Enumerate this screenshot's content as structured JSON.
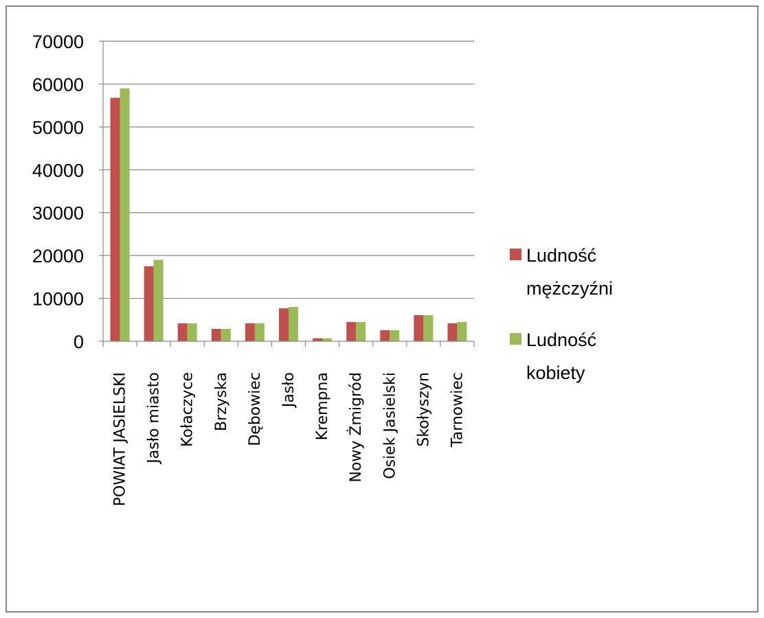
{
  "chart_data": {
    "type": "bar",
    "title": "",
    "xlabel": "",
    "ylabel": "",
    "categories": [
      "POWIAT JASIELSKI",
      "Jasło miasto",
      "Kołaczyce",
      "Brzyska",
      "Dębowiec",
      "Jasło",
      "Krempna",
      "Nowy Żmigród",
      "Osiek Jasielski",
      "Skołyszyn",
      "Tarnowiec"
    ],
    "series": [
      {
        "name": "Ludność mężczyźni",
        "color": "#c0504d",
        "values": [
          56800,
          17500,
          4200,
          2900,
          4200,
          7700,
          700,
          4500,
          2600,
          6100,
          4200
        ]
      },
      {
        "name": "Ludność kobiety",
        "color": "#9bbb59",
        "values": [
          59000,
          19000,
          4200,
          2900,
          4200,
          8000,
          700,
          4500,
          2600,
          6100,
          4500
        ]
      }
    ],
    "ylim": [
      0,
      70000
    ],
    "yticks": [
      0,
      10000,
      20000,
      30000,
      40000,
      50000,
      60000,
      70000
    ],
    "grid": true,
    "legend": "right"
  }
}
